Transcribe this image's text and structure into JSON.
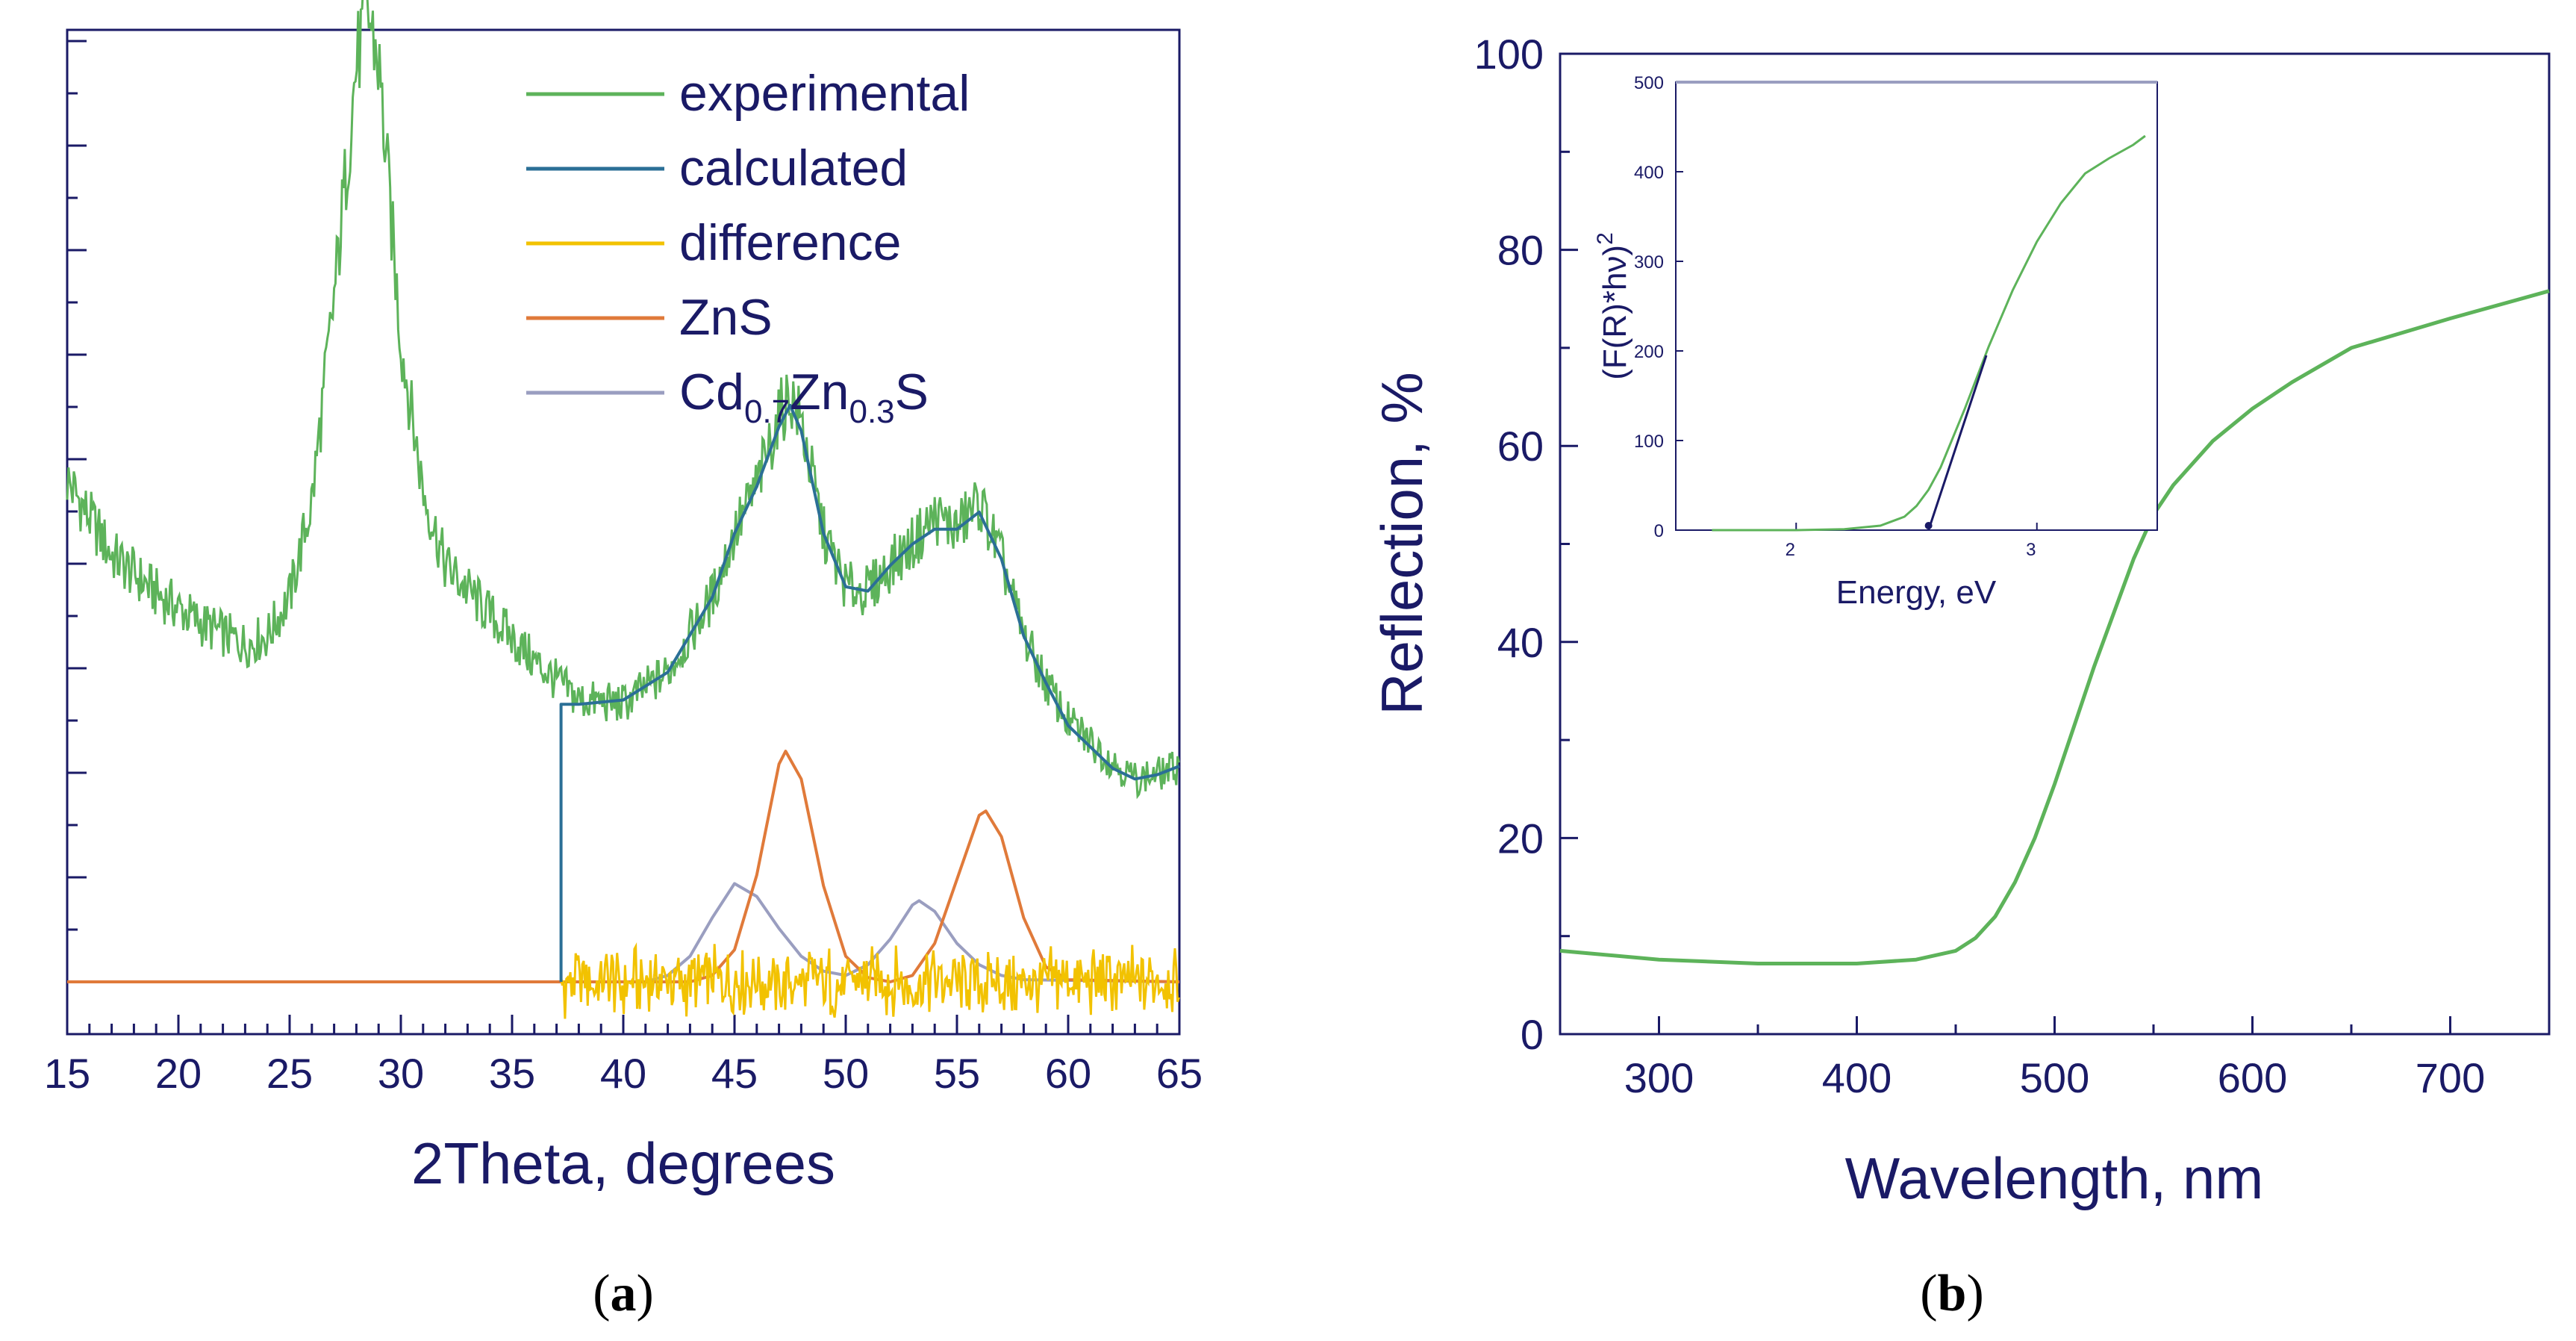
{
  "colors": {
    "axis": "#1a1a66",
    "experimental": "#5db35a",
    "calculated": "#2b6f96",
    "difference": "#f2c200",
    "zns": "#e07a3a",
    "cdzns": "#9a9ec0"
  },
  "chart_data": [
    {
      "type": "line",
      "panel_label": "(a)",
      "panel_letter": "a",
      "xlabel": "2Theta, degrees",
      "ylabel": "",
      "xlim": [
        15,
        65
      ],
      "x_ticks": [
        "15",
        "20",
        "25",
        "30",
        "35",
        "40",
        "45",
        "50",
        "55",
        "60",
        "65"
      ],
      "y_ticks_labeled": false,
      "legend": {
        "position": "top-right",
        "entries": [
          {
            "key": "experimental",
            "label": "experimental"
          },
          {
            "key": "calculated",
            "label": "calculated"
          },
          {
            "key": "difference",
            "label": "difference"
          },
          {
            "key": "zns",
            "label": "ZnS"
          },
          {
            "key": "cdzns",
            "label_parts": [
              "Cd",
              "0.7",
              "Zn",
              "0.3",
              "S"
            ]
          }
        ]
      },
      "series": [
        {
          "name": "experimental",
          "x": [
            15,
            17,
            19,
            21,
            23,
            24,
            25,
            26,
            27,
            28,
            28.5,
            29,
            30,
            31,
            32,
            34,
            36,
            38,
            40,
            42,
            44,
            45,
            46,
            47,
            47.5,
            48,
            49,
            50,
            51,
            52,
            53,
            54,
            55,
            56,
            57,
            58,
            59,
            60,
            62,
            63,
            64,
            65
          ],
          "y": [
            235,
            200,
            182,
            168,
            158,
            162,
            180,
            225,
            320,
            430,
            455,
            430,
            300,
            230,
            195,
            172,
            150,
            132,
            130,
            145,
            180,
            210,
            232,
            265,
            275,
            262,
            210,
            185,
            183,
            195,
            205,
            218,
            212,
            225,
            198,
            162,
            140,
            122,
            103,
            95,
            97,
            101
          ]
        },
        {
          "name": "calculated",
          "x": [
            37.2,
            37.2,
            38,
            40,
            42,
            44,
            45,
            46,
            47,
            47.5,
            48,
            49,
            50,
            51,
            52,
            53,
            54,
            55,
            56,
            57,
            58,
            59,
            60,
            62,
            63,
            64,
            65
          ],
          "y": [
            0,
            130,
            130,
            132,
            145,
            180,
            210,
            232,
            260,
            270,
            258,
            210,
            185,
            183,
            195,
            205,
            212,
            212,
            220,
            198,
            162,
            140,
            120,
            100,
            95,
            97,
            101
          ]
        },
        {
          "name": "difference",
          "x": [
            37.2,
            65
          ],
          "y": [
            0,
            0
          ]
        },
        {
          "name": "ZnS",
          "x": [
            15,
            43,
            44,
            45,
            46,
            47,
            47.3,
            48,
            49,
            50,
            51,
            52,
            53,
            54,
            55,
            56,
            56.3,
            57,
            58,
            59,
            60,
            65
          ],
          "y": [
            0,
            0,
            3,
            15,
            50,
            102,
            108,
            95,
            45,
            12,
            2,
            0,
            3,
            18,
            48,
            78,
            80,
            68,
            30,
            7,
            1,
            0
          ]
        },
        {
          "name": "Cd0.7Zn0.3S",
          "x": [
            15,
            41,
            42,
            43,
            44,
            45,
            46,
            47,
            48,
            49,
            50,
            51,
            52,
            53,
            53.3,
            54,
            55,
            56,
            57,
            58,
            65
          ],
          "y": [
            0,
            0,
            3,
            12,
            30,
            46,
            40,
            25,
            12,
            5,
            3,
            8,
            20,
            36,
            38,
            33,
            18,
            8,
            3,
            1,
            0
          ]
        }
      ]
    },
    {
      "type": "line",
      "panel_label": "(b)",
      "panel_letter": "b",
      "xlabel": "Wavelength, nm",
      "ylabel": "Reflection, %",
      "xlim": [
        250,
        750
      ],
      "ylim": [
        0,
        100
      ],
      "x_ticks": [
        300,
        400,
        500,
        600,
        700
      ],
      "y_ticks": [
        0,
        20,
        40,
        60,
        80,
        100
      ],
      "series": [
        {
          "name": "reflection",
          "x": [
            250,
            300,
            350,
            400,
            430,
            450,
            460,
            470,
            480,
            490,
            500,
            510,
            520,
            530,
            540,
            550,
            560,
            580,
            600,
            620,
            650,
            700,
            750
          ],
          "y": [
            8.5,
            7.6,
            7.2,
            7.2,
            7.6,
            8.5,
            9.8,
            12.0,
            15.5,
            20.0,
            25.5,
            31.5,
            37.5,
            43.0,
            48.5,
            53.0,
            56.0,
            60.5,
            63.8,
            66.5,
            70.0,
            73.0,
            75.8
          ]
        }
      ],
      "inset": {
        "xlabel": "Energy, eV",
        "ylabel": "(F(R)*hν)",
        "ylabel_superscript": "2",
        "xlim": [
          1.5,
          3.5
        ],
        "ylim": [
          0,
          500
        ],
        "x_ticks": [
          2,
          3
        ],
        "y_ticks": [
          0,
          100,
          200,
          300,
          400,
          500
        ],
        "series": [
          {
            "name": "absorption",
            "x": [
              1.65,
              2.0,
              2.2,
              2.35,
              2.45,
              2.5,
              2.55,
              2.6,
              2.7,
              2.8,
              2.9,
              3.0,
              3.1,
              3.2,
              3.3,
              3.4,
              3.45
            ],
            "y": [
              0,
              0,
              1,
              5,
              15,
              27,
              45,
              70,
              135,
              205,
              268,
              322,
              365,
              398,
              415,
              430,
              440
            ]
          },
          {
            "name": "linear-fit",
            "x": [
              2.55,
              2.79
            ],
            "y": [
              0,
              195
            ]
          }
        ]
      }
    }
  ]
}
